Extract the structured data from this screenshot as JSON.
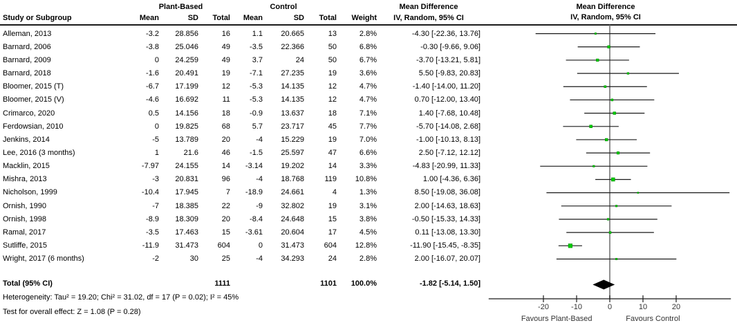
{
  "header": {
    "study_col": "Study or Subgroup",
    "group1": "Plant-Based",
    "group2": "Control",
    "mean1": "Mean",
    "sd1": "SD",
    "total1": "Total",
    "mean2": "Mean",
    "sd2": "SD",
    "total2": "Total",
    "weight": "Weight",
    "md_line1": "Mean Difference",
    "md_line2": "IV, Random, 95% CI",
    "plot_line1": "Mean Difference",
    "plot_line2": "IV, Random, 95% CI"
  },
  "chart_data": {
    "type": "forest",
    "effect_measure": "Mean Difference",
    "model": "IV, Random, 95% CI",
    "studies": [
      {
        "name": "Alleman, 2013",
        "mean1": "-3.2",
        "sd1": "28.856",
        "n1": "16",
        "mean2": "1.1",
        "sd2": "20.665",
        "n2": "13",
        "weight": "2.8%",
        "ci": "-4.30 [-22.36, 13.76]"
      },
      {
        "name": "Barnard, 2006",
        "mean1": "-3.8",
        "sd1": "25.046",
        "n1": "49",
        "mean2": "-3.5",
        "sd2": "22.366",
        "n2": "50",
        "weight": "6.8%",
        "ci": "-0.30 [-9.66, 9.06]"
      },
      {
        "name": "Barnard, 2009",
        "mean1": "0",
        "sd1": "24.259",
        "n1": "49",
        "mean2": "3.7",
        "sd2": "24",
        "n2": "50",
        "weight": "6.7%",
        "ci": "-3.70 [-13.21, 5.81]"
      },
      {
        "name": "Barnard, 2018",
        "mean1": "-1.6",
        "sd1": "20.491",
        "n1": "19",
        "mean2": "-7.1",
        "sd2": "27.235",
        "n2": "19",
        "weight": "3.6%",
        "ci": "5.50 [-9.83, 20.83]"
      },
      {
        "name": "Bloomer, 2015 (T)",
        "mean1": "-6.7",
        "sd1": "17.199",
        "n1": "12",
        "mean2": "-5.3",
        "sd2": "14.135",
        "n2": "12",
        "weight": "4.7%",
        "ci": "-1.40 [-14.00, 11.20]"
      },
      {
        "name": "Bloomer, 2015 (V)",
        "mean1": "-4.6",
        "sd1": "16.692",
        "n1": "11",
        "mean2": "-5.3",
        "sd2": "14.135",
        "n2": "12",
        "weight": "4.7%",
        "ci": "0.70 [-12.00, 13.40]"
      },
      {
        "name": "Crimarco, 2020",
        "mean1": "0.5",
        "sd1": "14.156",
        "n1": "18",
        "mean2": "-0.9",
        "sd2": "13.637",
        "n2": "18",
        "weight": "7.1%",
        "ci": "1.40 [-7.68, 10.48]"
      },
      {
        "name": "Ferdowsian, 2010",
        "mean1": "0",
        "sd1": "19.825",
        "n1": "68",
        "mean2": "5.7",
        "sd2": "23.717",
        "n2": "45",
        "weight": "7.7%",
        "ci": "-5.70 [-14.08, 2.68]"
      },
      {
        "name": "Jenkins, 2014",
        "mean1": "-5",
        "sd1": "13.789",
        "n1": "20",
        "mean2": "-4",
        "sd2": "15.229",
        "n2": "19",
        "weight": "7.0%",
        "ci": "-1.00 [-10.13, 8.13]"
      },
      {
        "name": "Lee, 2016 (3 months)",
        "mean1": "1",
        "sd1": "21.6",
        "n1": "46",
        "mean2": "-1.5",
        "sd2": "25.597",
        "n2": "47",
        "weight": "6.6%",
        "ci": "2.50 [-7.12, 12.12]"
      },
      {
        "name": "Macklin, 2015",
        "mean1": "-7.97",
        "sd1": "24.155",
        "n1": "14",
        "mean2": "-3.14",
        "sd2": "19.202",
        "n2": "14",
        "weight": "3.3%",
        "ci": "-4.83 [-20.99, 11.33]"
      },
      {
        "name": "Mishra, 2013",
        "mean1": "-3",
        "sd1": "20.831",
        "n1": "96",
        "mean2": "-4",
        "sd2": "18.768",
        "n2": "119",
        "weight": "10.8%",
        "ci": "1.00 [-4.36, 6.36]"
      },
      {
        "name": "Nicholson, 1999",
        "mean1": "-10.4",
        "sd1": "17.945",
        "n1": "7",
        "mean2": "-18.9",
        "sd2": "24.661",
        "n2": "4",
        "weight": "1.3%",
        "ci": "8.50 [-19.08, 36.08]"
      },
      {
        "name": "Ornish, 1990",
        "mean1": "-7",
        "sd1": "18.385",
        "n1": "22",
        "mean2": "-9",
        "sd2": "32.802",
        "n2": "19",
        "weight": "3.1%",
        "ci": "2.00 [-14.63, 18.63]"
      },
      {
        "name": "Ornish, 1998",
        "mean1": "-8.9",
        "sd1": "18.309",
        "n1": "20",
        "mean2": "-8.4",
        "sd2": "24.648",
        "n2": "15",
        "weight": "3.8%",
        "ci": "-0.50 [-15.33, 14.33]"
      },
      {
        "name": "Ramal, 2017",
        "mean1": "-3.5",
        "sd1": "17.463",
        "n1": "15",
        "mean2": "-3.61",
        "sd2": "20.604",
        "n2": "17",
        "weight": "4.5%",
        "ci": "0.11 [-13.08, 13.30]"
      },
      {
        "name": "Sutliffe, 2015",
        "mean1": "-11.9",
        "sd1": "31.473",
        "n1": "604",
        "mean2": "0",
        "sd2": "31.473",
        "n2": "604",
        "weight": "12.8%",
        "ci": "-11.90 [-15.45, -8.35]"
      },
      {
        "name": "Wright, 2017 (6 months)",
        "mean1": "-2",
        "sd1": "30",
        "n1": "25",
        "mean2": "-4",
        "sd2": "34.293",
        "n2": "24",
        "weight": "2.8%",
        "ci": "2.00 [-16.07, 20.07]"
      }
    ],
    "total": {
      "label": "Total (95% CI)",
      "n1": "1111",
      "n2": "1101",
      "weight": "100.0%",
      "ci": "-1.82 [-5.14, 1.50]"
    },
    "footnotes": {
      "heterogeneity": "Heterogeneity: Tau² = 19.20; Chi² = 31.02, df = 17 (P = 0.02); I² = 45%",
      "overall_effect": "Test for overall effect: Z = 1.08 (P = 0.28)"
    },
    "axis": {
      "ticks": [
        -20,
        -10,
        0,
        10,
        20
      ],
      "min": -36.5,
      "max": 36.5,
      "favours_left": "Favours Plant-Based",
      "favours_right": "Favours Control"
    },
    "style": {
      "marker_color": "#00cc00",
      "marker_edge_color": "#008800",
      "ci_line_color": "#1a1a1a",
      "diamond_color": "#000000",
      "zero_line_color": "#757575",
      "axis_color": "#1a1a1a",
      "axis_text_color": "#333333"
    }
  }
}
